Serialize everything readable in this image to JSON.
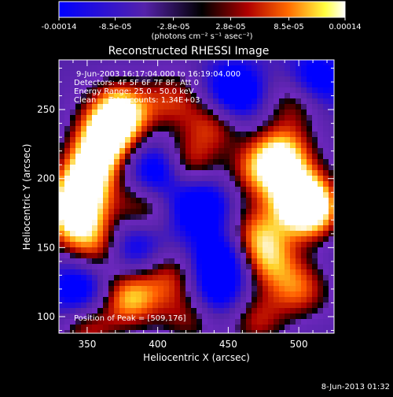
{
  "chart_data": {
    "type": "heatmap",
    "title": "Reconstructed RHESSI Image",
    "xlabel": "Heliocentric X (arcsec)",
    "ylabel": "Heliocentric Y (arcsec)",
    "xlim": [
      330,
      525
    ],
    "ylim": [
      88,
      286
    ],
    "x_ticks": [
      350,
      400,
      450,
      500
    ],
    "y_ticks": [
      100,
      150,
      200,
      250
    ],
    "colorbar": {
      "tick_labels": [
        "-0.00014",
        "-8.5e-05",
        "-2.8e-05",
        "2.8e-05",
        "8.5e-05",
        "0.00014"
      ],
      "tick_values": [
        -0.00014,
        -8.5e-05,
        -2.8e-05,
        2.8e-05,
        8.5e-05,
        0.00014
      ],
      "unit_label": "(photons cm⁻² s⁻¹ asec⁻²)",
      "colors": [
        "#0000ff",
        "#5522aa",
        "#000000",
        "#b00000",
        "#ff6a00",
        "#ffff40",
        "#ffffff"
      ]
    },
    "annotations": [
      "9-Jun-2003 16:17:04.000 to 16:19:04.000",
      "Detectors: 4F 5F 6F 7F 8F, Att 0",
      "Energy Range: 25.0 - 50.0 keV",
      "Clean     Total counts: 1.34E+03",
      "Position of Peak = [509,176]"
    ],
    "peak": {
      "x": 509,
      "y": 176
    },
    "sources": [
      {
        "x": 374,
        "y": 248,
        "amp": 1.0
      },
      {
        "x": 362,
        "y": 228,
        "amp": 0.9
      },
      {
        "x": 352,
        "y": 208,
        "amp": 0.7
      },
      {
        "x": 345,
        "y": 190,
        "amp": 0.8
      },
      {
        "x": 340,
        "y": 170,
        "amp": 0.75
      },
      {
        "x": 360,
        "y": 150,
        "amp": 0.6
      },
      {
        "x": 390,
        "y": 180,
        "amp": 0.55
      },
      {
        "x": 420,
        "y": 210,
        "amp": 0.6
      },
      {
        "x": 440,
        "y": 240,
        "amp": 0.55
      },
      {
        "x": 410,
        "y": 258,
        "amp": 0.55
      },
      {
        "x": 488,
        "y": 218,
        "amp": 0.85
      },
      {
        "x": 509,
        "y": 176,
        "amp": 1.0
      },
      {
        "x": 498,
        "y": 190,
        "amp": 0.8
      },
      {
        "x": 470,
        "y": 205,
        "amp": 0.6
      },
      {
        "x": 470,
        "y": 160,
        "amp": 0.55
      },
      {
        "x": 478,
        "y": 140,
        "amp": 0.6
      },
      {
        "x": 500,
        "y": 120,
        "amp": 0.6
      },
      {
        "x": 470,
        "y": 98,
        "amp": 0.55
      },
      {
        "x": 380,
        "y": 114,
        "amp": 0.8
      },
      {
        "x": 410,
        "y": 130,
        "amp": 0.5
      },
      {
        "x": 425,
        "y": 100,
        "amp": 0.45
      },
      {
        "x": 350,
        "y": 92,
        "amp": 0.55
      },
      {
        "x": 500,
        "y": 258,
        "amp": 0.6
      },
      {
        "x": 430,
        "y": 180,
        "amp": -0.7
      },
      {
        "x": 400,
        "y": 205,
        "amp": -0.8
      },
      {
        "x": 380,
        "y": 150,
        "amp": -0.6
      },
      {
        "x": 455,
        "y": 262,
        "amp": -0.8
      },
      {
        "x": 510,
        "y": 270,
        "amp": -0.7
      },
      {
        "x": 445,
        "y": 140,
        "amp": -0.7
      },
      {
        "x": 345,
        "y": 120,
        "amp": -0.6
      },
      {
        "x": 440,
        "y": 115,
        "amp": -0.5
      }
    ]
  },
  "footer": {
    "date_stamp": "8-Jun-2013 01:32"
  }
}
